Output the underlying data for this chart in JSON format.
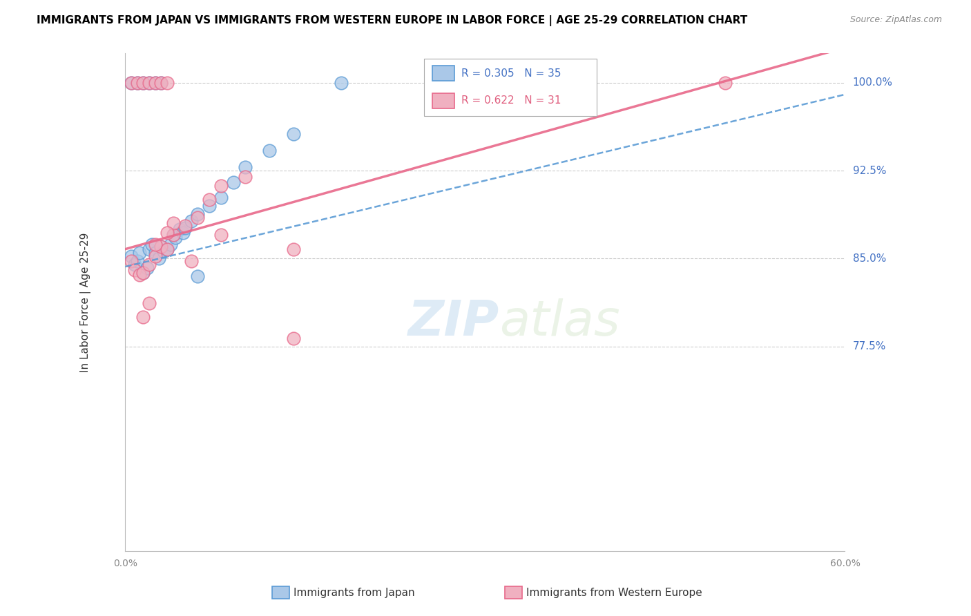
{
  "title": "IMMIGRANTS FROM JAPAN VS IMMIGRANTS FROM WESTERN EUROPE IN LABOR FORCE | AGE 25-29 CORRELATION CHART",
  "source": "Source: ZipAtlas.com",
  "ylabel_label": "In Labor Force | Age 25-29",
  "ytick_labels": [
    "77.5%",
    "85.0%",
    "92.5%",
    "100.0%"
  ],
  "ytick_values": [
    0.775,
    0.85,
    0.925,
    1.0
  ],
  "xtick_labels": [
    "0.0%",
    "",
    "",
    "",
    "",
    "",
    "60.0%"
  ],
  "legend_entries": [
    {
      "label": "Immigrants from Japan",
      "R": 0.305,
      "N": 35
    },
    {
      "label": "Immigrants from Western Europe",
      "R": 0.622,
      "N": 31
    }
  ],
  "watermark_zip": "ZIP",
  "watermark_atlas": "atlas",
  "blue_color": "#5b9bd5",
  "pink_color": "#e8688a",
  "blue_light": "#aac8e8",
  "pink_light": "#f0b0c0",
  "blue_text": "#4472c4",
  "pink_text": "#e06080",
  "axis_color": "#bbbbbb",
  "grid_color": "#cccccc",
  "xmin": 0.0,
  "xmax": 0.6,
  "ymin": 0.6,
  "ymax": 1.025,
  "blue_scatter_x": [
    0.005,
    0.008,
    0.01,
    0.012,
    0.015,
    0.018,
    0.02,
    0.022,
    0.025,
    0.028,
    0.03,
    0.032,
    0.035,
    0.038,
    0.04,
    0.042,
    0.045,
    0.048,
    0.05,
    0.055,
    0.06,
    0.07,
    0.08,
    0.09,
    0.1,
    0.12,
    0.14,
    0.005,
    0.01,
    0.015,
    0.02,
    0.025,
    0.03,
    0.18,
    0.06
  ],
  "blue_scatter_y": [
    0.852,
    0.845,
    0.848,
    0.855,
    0.838,
    0.842,
    0.858,
    0.862,
    0.855,
    0.85,
    0.86,
    0.856,
    0.858,
    0.862,
    0.87,
    0.868,
    0.875,
    0.872,
    0.876,
    0.882,
    0.888,
    0.895,
    0.902,
    0.915,
    0.928,
    0.942,
    0.956,
    1.0,
    1.0,
    1.0,
    1.0,
    1.0,
    1.0,
    1.0,
    0.835
  ],
  "pink_scatter_x": [
    0.005,
    0.008,
    0.012,
    0.015,
    0.02,
    0.025,
    0.03,
    0.035,
    0.04,
    0.05,
    0.06,
    0.07,
    0.08,
    0.1,
    0.14,
    0.005,
    0.01,
    0.015,
    0.02,
    0.025,
    0.03,
    0.035,
    0.04,
    0.025,
    0.035,
    0.055,
    0.08,
    0.015,
    0.02,
    0.5,
    0.14
  ],
  "pink_scatter_y": [
    0.848,
    0.84,
    0.836,
    0.838,
    0.845,
    0.852,
    0.86,
    0.858,
    0.87,
    0.878,
    0.885,
    0.9,
    0.912,
    0.92,
    0.858,
    1.0,
    1.0,
    1.0,
    1.0,
    1.0,
    1.0,
    1.0,
    0.88,
    0.862,
    0.872,
    0.848,
    0.87,
    0.8,
    0.812,
    1.0,
    0.782
  ],
  "blue_line_x0": 0.0,
  "blue_line_x1": 0.6,
  "blue_line_y0": 0.843,
  "blue_line_y1": 0.99,
  "pink_line_x0": 0.0,
  "pink_line_x1": 0.6,
  "pink_line_y0": 0.858,
  "pink_line_y1": 1.03
}
